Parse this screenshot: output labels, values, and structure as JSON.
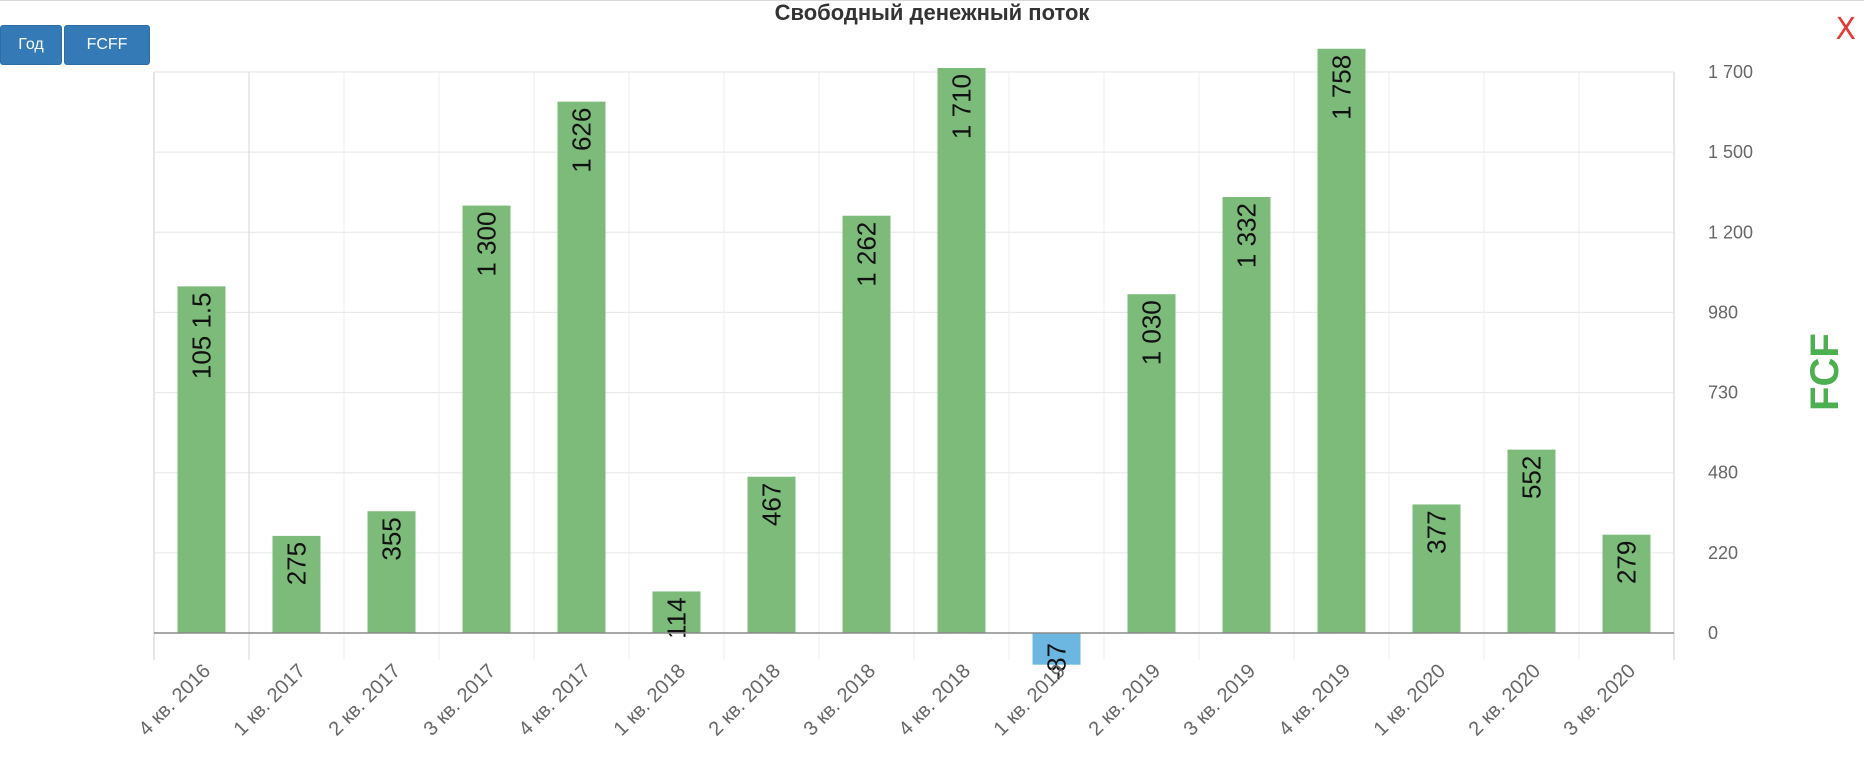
{
  "title": "Свободный денежный поток",
  "buttons": {
    "year": "Год",
    "fcff": "FCFF"
  },
  "close_label": "X",
  "colors": {
    "positive": "#7dbb7a",
    "negative": "#6bb7e2",
    "axis_title": "#4caf50",
    "button": "#337ab7",
    "close": "#e53935"
  },
  "chart_data": {
    "type": "bar",
    "title": "Свободный денежный поток",
    "categories": [
      "4 кв. 2016",
      "1 кв. 2017",
      "2 кв. 2017",
      "3 кв. 2017",
      "4 кв. 2017",
      "1 кв. 2018",
      "2 кв. 2018",
      "3 кв. 2018",
      "4 кв. 2018",
      "1 кв. 2019",
      "2 кв. 2019",
      "3 кв. 2019",
      "4 кв. 2019",
      "1 кв. 2020",
      "2 кв. 2020",
      "3 кв. 2020"
    ],
    "values": [
      1051.5,
      275,
      355,
      1300,
      1626,
      114,
      467,
      1262,
      1710,
      -87,
      1030,
      1332,
      1758,
      377,
      552,
      279
    ],
    "value_labels": [
      "105 1.5",
      "275",
      "355",
      "1 300",
      "1 626",
      "114",
      "467",
      "1 262",
      "1 710",
      "-87",
      "1 030",
      "1 332",
      "1 758",
      "377",
      "552",
      "279"
    ],
    "ylabel": "FCF",
    "y_ticks": [
      0,
      220,
      480,
      730,
      980,
      1200,
      1500,
      1700
    ],
    "y_tick_labels": [
      "0",
      "220",
      "480",
      "730",
      "980",
      "1 200",
      "1 500",
      "1 700"
    ],
    "ylim": [
      -87,
      1758
    ],
    "y_axis_side": "right",
    "grid": true,
    "legend": "none"
  }
}
